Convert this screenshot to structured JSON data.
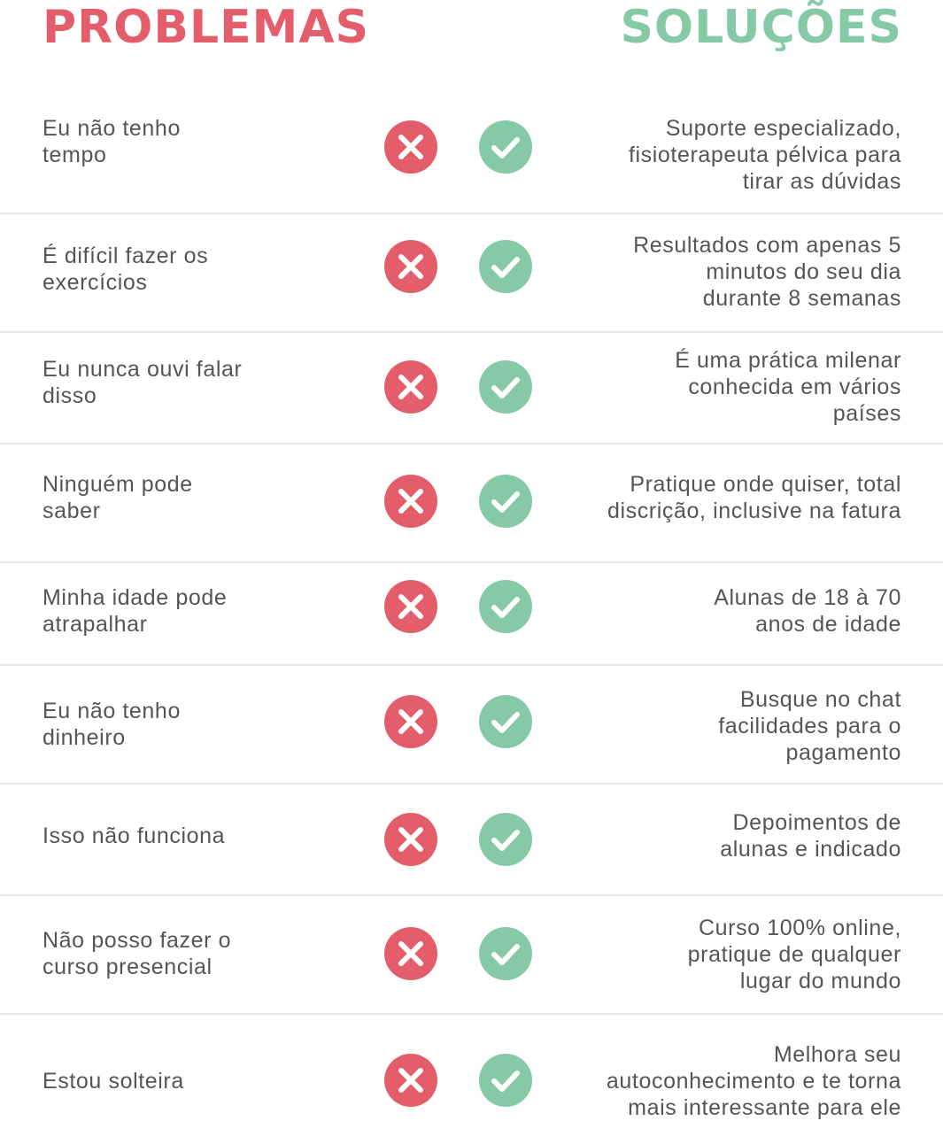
{
  "header": {
    "problems_title": "PROBLEMAS",
    "solutions_title": "SOLUÇÕES"
  },
  "colors": {
    "problem_red": "#e35d6a",
    "solution_green": "#86c9a7",
    "text_gray": "#555555",
    "divider": "#e6e6e6"
  },
  "rows": [
    {
      "problem": "Eu não tenho\ntempo",
      "solution": "Suporte especializado,\nfisioterapeuta pélvica para\ntirar as dúvidas"
    },
    {
      "problem": "É difícil fazer os\nexercícios",
      "solution": "Resultados com apenas 5\nminutos do seu dia\ndurante 8 semanas"
    },
    {
      "problem": "Eu nunca ouvi falar\ndisso",
      "solution": "É uma prática milenar\nconhecida em vários\npaíses"
    },
    {
      "problem": "Ninguém pode\nsaber",
      "solution": "Pratique onde quiser, total\ndiscrição, inclusive na fatura"
    },
    {
      "problem": "Minha idade pode\natrapalhar",
      "solution": "Alunas de 18 à 70\nanos de idade"
    },
    {
      "problem": "Eu não tenho\ndinheiro",
      "solution": "Busque no chat\nfacilidades para o\npagamento"
    },
    {
      "problem": "Isso não funciona",
      "solution": "Depoimentos de\nalunas e indicado"
    },
    {
      "problem": "Não posso fazer o\ncurso presencial",
      "solution": "Curso 100% online,\npratique de qualquer\nlugar do mundo"
    },
    {
      "problem": "Estou solteira",
      "solution": "Melhora seu\nautoconhecimento e te torna\nmais interessante para ele"
    }
  ],
  "icons": {
    "problem_icon": "x-circle-icon",
    "solution_icon": "check-circle-icon"
  }
}
